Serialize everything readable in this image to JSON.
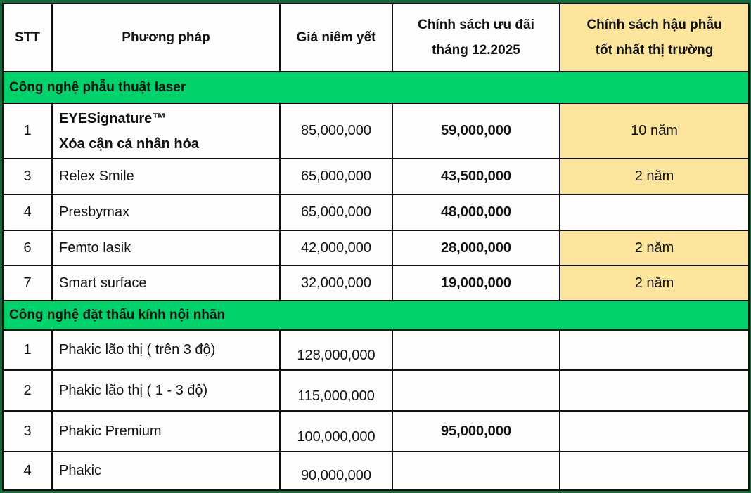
{
  "headers": {
    "stt": "STT",
    "method": "Phương pháp",
    "list_price": "Giá niêm yết",
    "promo_line1": "Chính sách ưu đãi",
    "promo_line2": "tháng 12.2025",
    "aftercare_line1": "Chính sách hậu phẫu",
    "aftercare_line2": "tốt nhất thị trường"
  },
  "sections": [
    {
      "title": "Công nghệ phẫu thuật  laser",
      "rows": [
        {
          "stt": "1",
          "method": "EYESignature™",
          "method_line2": "Xóa cận cá nhân hóa",
          "list_price": "85,000,000",
          "promo": "59,000,000",
          "aftercare": "10 năm"
        },
        {
          "stt": "3",
          "method": "Relex Smile",
          "list_price": "65,000,000",
          "promo": "43,500,000",
          "aftercare": "2 năm"
        },
        {
          "stt": "4",
          "method": "Presbymax",
          "list_price": "65,000,000",
          "promo": "48,000,000",
          "aftercare": ""
        },
        {
          "stt": "6",
          "method": "Femto lasik",
          "list_price": "42,000,000",
          "promo": "28,000,000",
          "aftercare": "2 năm"
        },
        {
          "stt": "7",
          "method": "Smart surface",
          "list_price": "32,000,000",
          "promo": "19,000,000",
          "aftercare": "2 năm"
        }
      ]
    },
    {
      "title": "Công nghệ đặt thấu kính nội nhãn",
      "rows": [
        {
          "stt": "1",
          "method": "Phakic lão thị ( trên 3 độ)",
          "list_price": "128,000,000",
          "promo": "",
          "aftercare": ""
        },
        {
          "stt": "2",
          "method": "Phakic lão thị ( 1 - 3 độ)",
          "list_price": "115,000,000",
          "promo": "",
          "aftercare": ""
        },
        {
          "stt": "3",
          "method": "Phakic Premium",
          "list_price": "100,000,000",
          "promo": "95,000,000",
          "aftercare": ""
        },
        {
          "stt": "4",
          "method": "Phakic",
          "list_price": "90,000,000",
          "promo": "",
          "aftercare": ""
        }
      ]
    }
  ],
  "colors": {
    "section_green": "#00d16b",
    "highlight_yellow": "#fde49d",
    "frame_green": "#17683a"
  }
}
